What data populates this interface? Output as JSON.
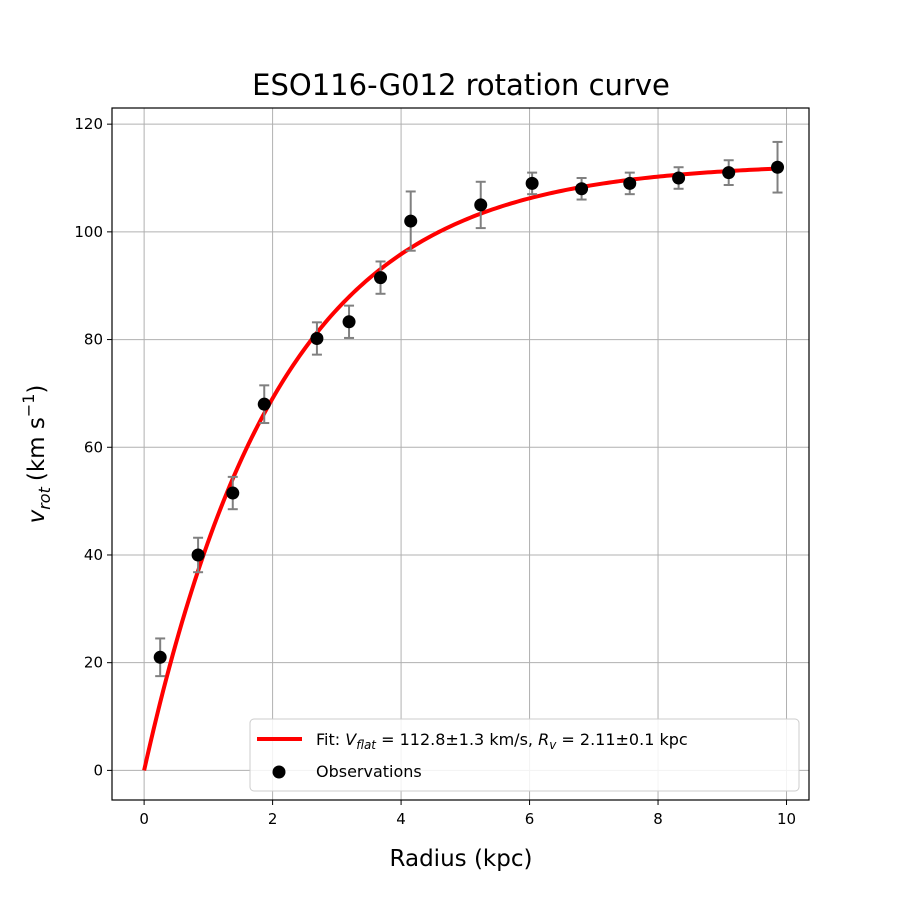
{
  "chart_data": {
    "type": "scatter",
    "title": "ESO116-G012 rotation curve",
    "xlabel": "Radius (kpc)",
    "ylabel": "v_rot (km s^-1)",
    "ylabel_main": "v",
    "ylabel_sub": "rot",
    "ylabel_unit": "(km s",
    "ylabel_sup": "−1",
    "ylabel_close": ")",
    "xlim": [
      -0.5,
      10.35
    ],
    "ylim": [
      -5.5,
      123
    ],
    "xticks": [
      0,
      2,
      4,
      6,
      8,
      10
    ],
    "yticks": [
      0,
      20,
      40,
      60,
      80,
      100,
      120
    ],
    "grid": true,
    "legend_position": "lower-right",
    "series": [
      {
        "name": "Fit: V_flat = 112.8±1.3 km/s, R_v = 2.11±0.1 kpc",
        "kind": "line",
        "color": "#ff0000",
        "model": "V_flat * (1 - exp(-r / R_v))",
        "params": {
          "V_flat": 112.8,
          "R_v": 2.11
        },
        "x_range": [
          0,
          9.86
        ]
      },
      {
        "name": "Observations",
        "kind": "scatter",
        "color": "#000000",
        "errorbar_color": "#808080",
        "points": [
          {
            "x": 0.25,
            "y": 21.0,
            "err": 3.5
          },
          {
            "x": 0.84,
            "y": 40.0,
            "err": 3.2
          },
          {
            "x": 1.38,
            "y": 51.5,
            "err": 3.0
          },
          {
            "x": 1.87,
            "y": 68.0,
            "err": 3.5
          },
          {
            "x": 2.69,
            "y": 80.2,
            "err": 3.0
          },
          {
            "x": 3.19,
            "y": 83.3,
            "err": 3.0
          },
          {
            "x": 3.68,
            "y": 91.5,
            "err": 3.0
          },
          {
            "x": 4.15,
            "y": 102.0,
            "err": 5.5
          },
          {
            "x": 5.24,
            "y": 105.0,
            "err": 4.3
          },
          {
            "x": 6.04,
            "y": 109.0,
            "err": 2.0
          },
          {
            "x": 6.81,
            "y": 108.0,
            "err": 2.0
          },
          {
            "x": 7.56,
            "y": 109.0,
            "err": 2.0
          },
          {
            "x": 8.32,
            "y": 110.0,
            "err": 2.0
          },
          {
            "x": 9.1,
            "y": 111.0,
            "err": 2.3
          },
          {
            "x": 9.86,
            "y": 112.0,
            "err": 4.7
          }
        ]
      }
    ],
    "legend": {
      "fit_prefix": "Fit: ",
      "vflat_main": "V",
      "vflat_sub": "flat",
      "vflat_value": " = 112.8±1.3 km/s, ",
      "rv_main": "R",
      "rv_sub": "v",
      "rv_value": " = 2.11±0.1 kpc",
      "obs_label": "Observations"
    }
  }
}
